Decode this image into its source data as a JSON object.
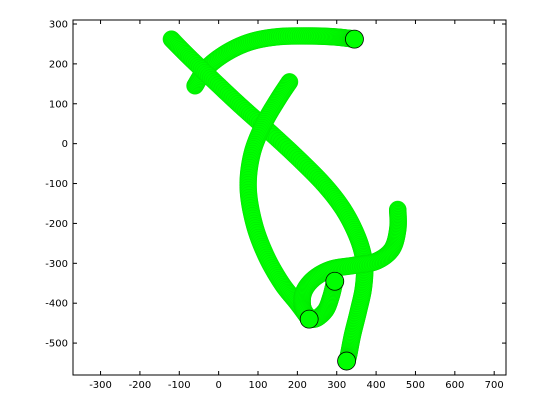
{
  "chart_data": {
    "type": "scatter",
    "title": "",
    "xlabel": "",
    "ylabel": "",
    "xlim": [
      -370,
      730
    ],
    "ylim": [
      -580,
      310
    ],
    "xticks": [
      -300,
      -200,
      -100,
      0,
      100,
      200,
      300,
      400,
      500,
      600,
      700
    ],
    "yticks": [
      -500,
      -400,
      -300,
      -200,
      -100,
      0,
      100,
      200,
      300
    ],
    "grid": false,
    "legend": "none",
    "marker_color": "#00ff00",
    "marker_edge_color": "#000000",
    "series": [
      {
        "points": [
          [
            -60,
            145
          ],
          [
            -30,
            190
          ],
          [
            20,
            228
          ],
          [
            80,
            255
          ],
          [
            150,
            268
          ],
          [
            230,
            270
          ],
          [
            290,
            268
          ],
          [
            330,
            264
          ],
          [
            345,
            262
          ]
        ],
        "end_marker": [
          345,
          262
        ]
      },
      {
        "points": [
          [
            -120,
            262
          ],
          [
            -80,
            222
          ],
          [
            -20,
            165
          ],
          [
            50,
            100
          ],
          [
            120,
            38
          ],
          [
            200,
            -35
          ],
          [
            270,
            -105
          ],
          [
            320,
            -170
          ],
          [
            355,
            -240
          ],
          [
            370,
            -300
          ],
          [
            368,
            -360
          ],
          [
            355,
            -420
          ],
          [
            340,
            -480
          ],
          [
            330,
            -530
          ],
          [
            325,
            -545
          ]
        ],
        "end_marker": [
          325,
          -545
        ]
      },
      {
        "points": [
          [
            180,
            155
          ],
          [
            150,
            110
          ],
          [
            115,
            50
          ],
          [
            85,
            -25
          ],
          [
            75,
            -110
          ],
          [
            90,
            -200
          ],
          [
            120,
            -280
          ],
          [
            160,
            -350
          ],
          [
            200,
            -400
          ],
          [
            230,
            -440
          ]
        ],
        "end_marker": [
          230,
          -440
        ]
      },
      {
        "points": [
          [
            455,
            -165
          ],
          [
            455,
            -215
          ],
          [
            440,
            -265
          ],
          [
            400,
            -295
          ],
          [
            345,
            -305
          ],
          [
            285,
            -315
          ],
          [
            240,
            -340
          ],
          [
            215,
            -375
          ],
          [
            215,
            -415
          ],
          [
            240,
            -440
          ],
          [
            270,
            -420
          ],
          [
            285,
            -385
          ],
          [
            295,
            -345
          ]
        ],
        "end_marker": [
          295,
          -345
        ]
      }
    ]
  }
}
